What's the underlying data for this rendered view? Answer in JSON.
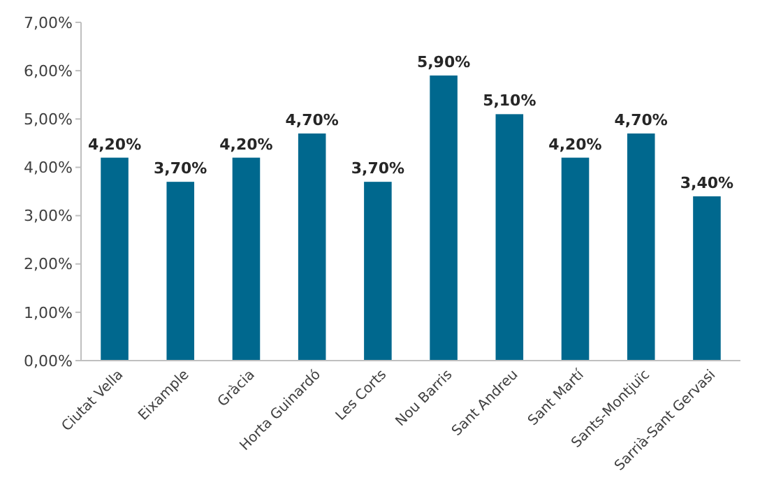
{
  "chart_data": {
    "type": "bar",
    "categories": [
      "Ciutat Vella",
      "Eixample",
      "Gràcia",
      "Horta Guinardó",
      "Les Corts",
      "Nou Barris",
      "Sant Andreu",
      "Sant Martí",
      "Sants-Montjuïc",
      "Sarrià-Sant Gervasi"
    ],
    "values": [
      4.2,
      3.7,
      4.2,
      4.7,
      3.7,
      5.9,
      5.1,
      4.2,
      4.7,
      3.4
    ],
    "value_labels": [
      "4,20%",
      "3,70%",
      "4,20%",
      "4,70%",
      "3,70%",
      "5,90%",
      "5,10%",
      "4,20%",
      "4,70%",
      "3,40%"
    ],
    "color": "#00688e",
    "ylim": [
      0,
      7
    ],
    "yticks": [
      {
        "value": 0,
        "label": "0,00%"
      },
      {
        "value": 1,
        "label": "1,00%"
      },
      {
        "value": 2,
        "label": "2,00%"
      },
      {
        "value": 3,
        "label": "3,00%"
      },
      {
        "value": 4,
        "label": "4,00%"
      },
      {
        "value": 5,
        "label": "5,00%"
      },
      {
        "value": 6,
        "label": "6,00%"
      },
      {
        "value": 7,
        "label": "7,00%"
      }
    ],
    "grid": false
  }
}
